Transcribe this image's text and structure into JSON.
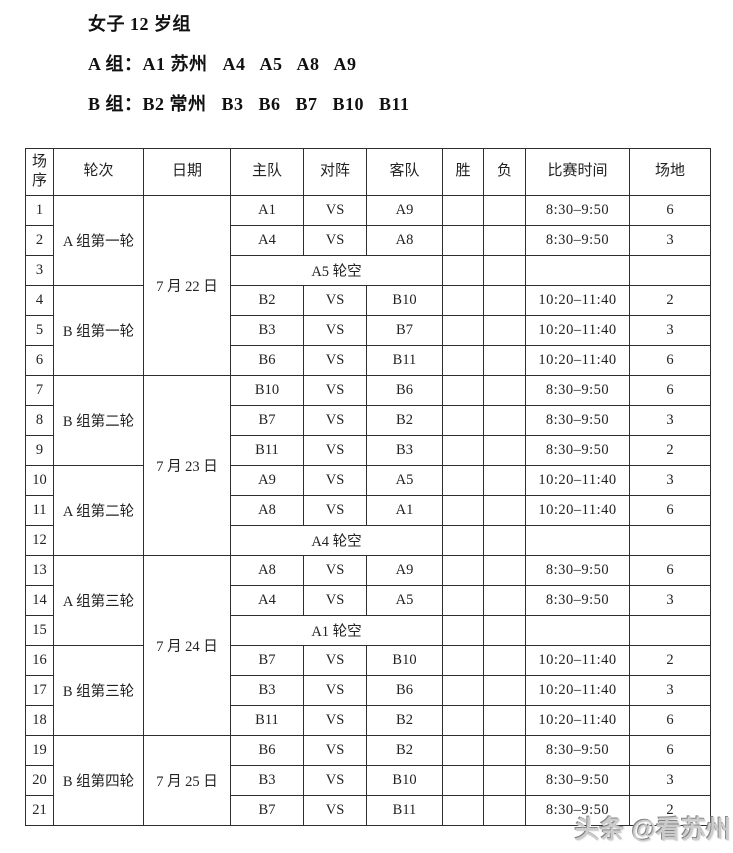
{
  "document": {
    "title": "女子 12 岁组",
    "group_a_line": "A 组：A1 苏州   A4   A5   A8   A9",
    "group_b_line": "B 组：B2 常州   B3   B6   B7   B10   B11"
  },
  "watermark": {
    "text": "头条 @看苏州",
    "color": "#9a9a9a"
  },
  "schedule_table": {
    "headers": [
      "场序",
      "轮次",
      "日期",
      "主队",
      "对阵",
      "客队",
      "胜",
      "负",
      "比赛时间",
      "场地"
    ],
    "rows": [
      {
        "no": "1",
        "round": "A 组第一轮",
        "round_span": 3,
        "date": "7 月 22 日",
        "date_span": 6,
        "home": "A1",
        "vs": "VS",
        "away": "A9",
        "win": "",
        "loss": "",
        "time": "8:30–9:50",
        "court": "6"
      },
      {
        "no": "2",
        "home": "A4",
        "vs": "VS",
        "away": "A8",
        "win": "",
        "loss": "",
        "time": "8:30–9:50",
        "court": "3"
      },
      {
        "no": "3",
        "bye": "A5 轮空",
        "win": "",
        "loss": "",
        "time": "",
        "court": ""
      },
      {
        "no": "4",
        "round": "B 组第一轮",
        "round_span": 3,
        "home": "B2",
        "vs": "VS",
        "away": "B10",
        "win": "",
        "loss": "",
        "time": "10:20–11:40",
        "court": "2"
      },
      {
        "no": "5",
        "home": "B3",
        "vs": "VS",
        "away": "B7",
        "win": "",
        "loss": "",
        "time": "10:20–11:40",
        "court": "3"
      },
      {
        "no": "6",
        "home": "B6",
        "vs": "VS",
        "away": "B11",
        "win": "",
        "loss": "",
        "time": "10:20–11:40",
        "court": "6"
      },
      {
        "no": "7",
        "round": "B 组第二轮",
        "round_span": 3,
        "date": "7 月 23 日",
        "date_span": 6,
        "home": "B10",
        "vs": "VS",
        "away": "B6",
        "win": "",
        "loss": "",
        "time": "8:30–9:50",
        "court": "6"
      },
      {
        "no": "8",
        "home": "B7",
        "vs": "VS",
        "away": "B2",
        "win": "",
        "loss": "",
        "time": "8:30–9:50",
        "court": "3"
      },
      {
        "no": "9",
        "home": "B11",
        "vs": "VS",
        "away": "B3",
        "win": "",
        "loss": "",
        "time": "8:30–9:50",
        "court": "2"
      },
      {
        "no": "10",
        "round": "A 组第二轮",
        "round_span": 3,
        "home": "A9",
        "vs": "VS",
        "away": "A5",
        "win": "",
        "loss": "",
        "time": "10:20–11:40",
        "court": "3"
      },
      {
        "no": "11",
        "home": "A8",
        "vs": "VS",
        "away": "A1",
        "win": "",
        "loss": "",
        "time": "10:20–11:40",
        "court": "6"
      },
      {
        "no": "12",
        "bye": "A4 轮空",
        "win": "",
        "loss": "",
        "time": "",
        "court": ""
      },
      {
        "no": "13",
        "round": "A 组第三轮",
        "round_span": 3,
        "date": "7 月 24 日",
        "date_span": 6,
        "home": "A8",
        "vs": "VS",
        "away": "A9",
        "win": "",
        "loss": "",
        "time": "8:30–9:50",
        "court": "6"
      },
      {
        "no": "14",
        "home": "A4",
        "vs": "VS",
        "away": "A5",
        "win": "",
        "loss": "",
        "time": "8:30–9:50",
        "court": "3"
      },
      {
        "no": "15",
        "bye": "A1 轮空",
        "win": "",
        "loss": "",
        "time": "",
        "court": ""
      },
      {
        "no": "16",
        "round": "B 组第三轮",
        "round_span": 3,
        "home": "B7",
        "vs": "VS",
        "away": "B10",
        "win": "",
        "loss": "",
        "time": "10:20–11:40",
        "court": "2"
      },
      {
        "no": "17",
        "home": "B3",
        "vs": "VS",
        "away": "B6",
        "win": "",
        "loss": "",
        "time": "10:20–11:40",
        "court": "3"
      },
      {
        "no": "18",
        "home": "B11",
        "vs": "VS",
        "away": "B2",
        "win": "",
        "loss": "",
        "time": "10:20–11:40",
        "court": "6"
      },
      {
        "no": "19",
        "round": "B 组第四轮",
        "round_span": 3,
        "date": "7 月 25 日",
        "date_span": 3,
        "home": "B6",
        "vs": "VS",
        "away": "B2",
        "win": "",
        "loss": "",
        "time": "8:30–9:50",
        "court": "6"
      },
      {
        "no": "20",
        "home": "B3",
        "vs": "VS",
        "away": "B10",
        "win": "",
        "loss": "",
        "time": "8:30–9:50",
        "court": "3"
      },
      {
        "no": "21",
        "home": "B7",
        "vs": "VS",
        "away": "B11",
        "win": "",
        "loss": "",
        "time": "8:30–9:50",
        "court": "2"
      }
    ]
  }
}
